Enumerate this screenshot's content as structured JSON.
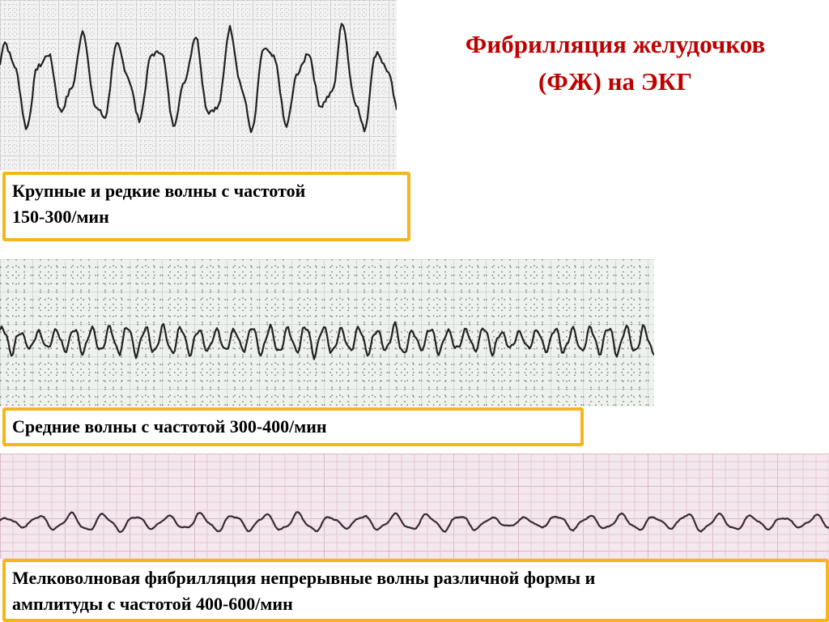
{
  "title": [
    "Фибрилляция желудочков",
    "(ФЖ) на ЭКГ"
  ],
  "panels": [
    {
      "caption": [
        "Крупные  и редкие волны с частотой",
        "150-300/мин"
      ]
    },
    {
      "caption": [
        "Средние волны с частотой 300-400/мин"
      ]
    },
    {
      "caption": [
        "Мелковолновая фибрилляция непрерывные волны различной формы и",
        "амплитуды с частотой 400-600/мин"
      ]
    }
  ]
}
